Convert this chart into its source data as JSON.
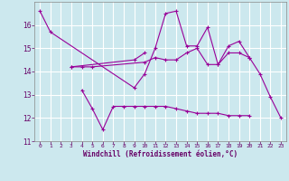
{
  "xlabel": "Windchill (Refroidissement éolien,°C)",
  "background_color": "#cce8ee",
  "grid_color": "#ffffff",
  "line_color": "#990099",
  "ylim": [
    11,
    17
  ],
  "xlim": [
    -0.5,
    23.5
  ],
  "yticks": [
    11,
    12,
    13,
    14,
    15,
    16
  ],
  "xticks": [
    0,
    1,
    2,
    3,
    4,
    5,
    6,
    7,
    8,
    9,
    10,
    11,
    12,
    13,
    14,
    15,
    16,
    17,
    18,
    19,
    20,
    21,
    22,
    23
  ],
  "series1_x": [
    0,
    1,
    9,
    10,
    11,
    12,
    13,
    14,
    15,
    16,
    17,
    18,
    19,
    20,
    21,
    22,
    23
  ],
  "series1_y": [
    16.6,
    15.7,
    13.3,
    13.9,
    15.0,
    16.5,
    16.6,
    15.1,
    15.1,
    15.9,
    14.3,
    15.1,
    15.3,
    14.6,
    13.9,
    12.9,
    12.0
  ],
  "series2_x": [
    3,
    4,
    5,
    10,
    11,
    12,
    13,
    14,
    15,
    16,
    17,
    18,
    19,
    20
  ],
  "series2_y": [
    14.2,
    14.2,
    14.2,
    14.4,
    14.6,
    14.5,
    14.5,
    14.8,
    15.0,
    14.3,
    14.3,
    14.8,
    14.8,
    14.6
  ],
  "series3_x": [
    4,
    5,
    6,
    7,
    8,
    9,
    10,
    11,
    12,
    13,
    14,
    15,
    16,
    17,
    18,
    19,
    20
  ],
  "series3_y": [
    13.2,
    12.4,
    11.5,
    12.5,
    12.5,
    12.5,
    12.5,
    12.5,
    12.5,
    12.4,
    12.3,
    12.2,
    12.2,
    12.2,
    12.1,
    12.1,
    12.1
  ],
  "series4_x": [
    3,
    9,
    10
  ],
  "series4_y": [
    14.2,
    14.5,
    14.8
  ]
}
